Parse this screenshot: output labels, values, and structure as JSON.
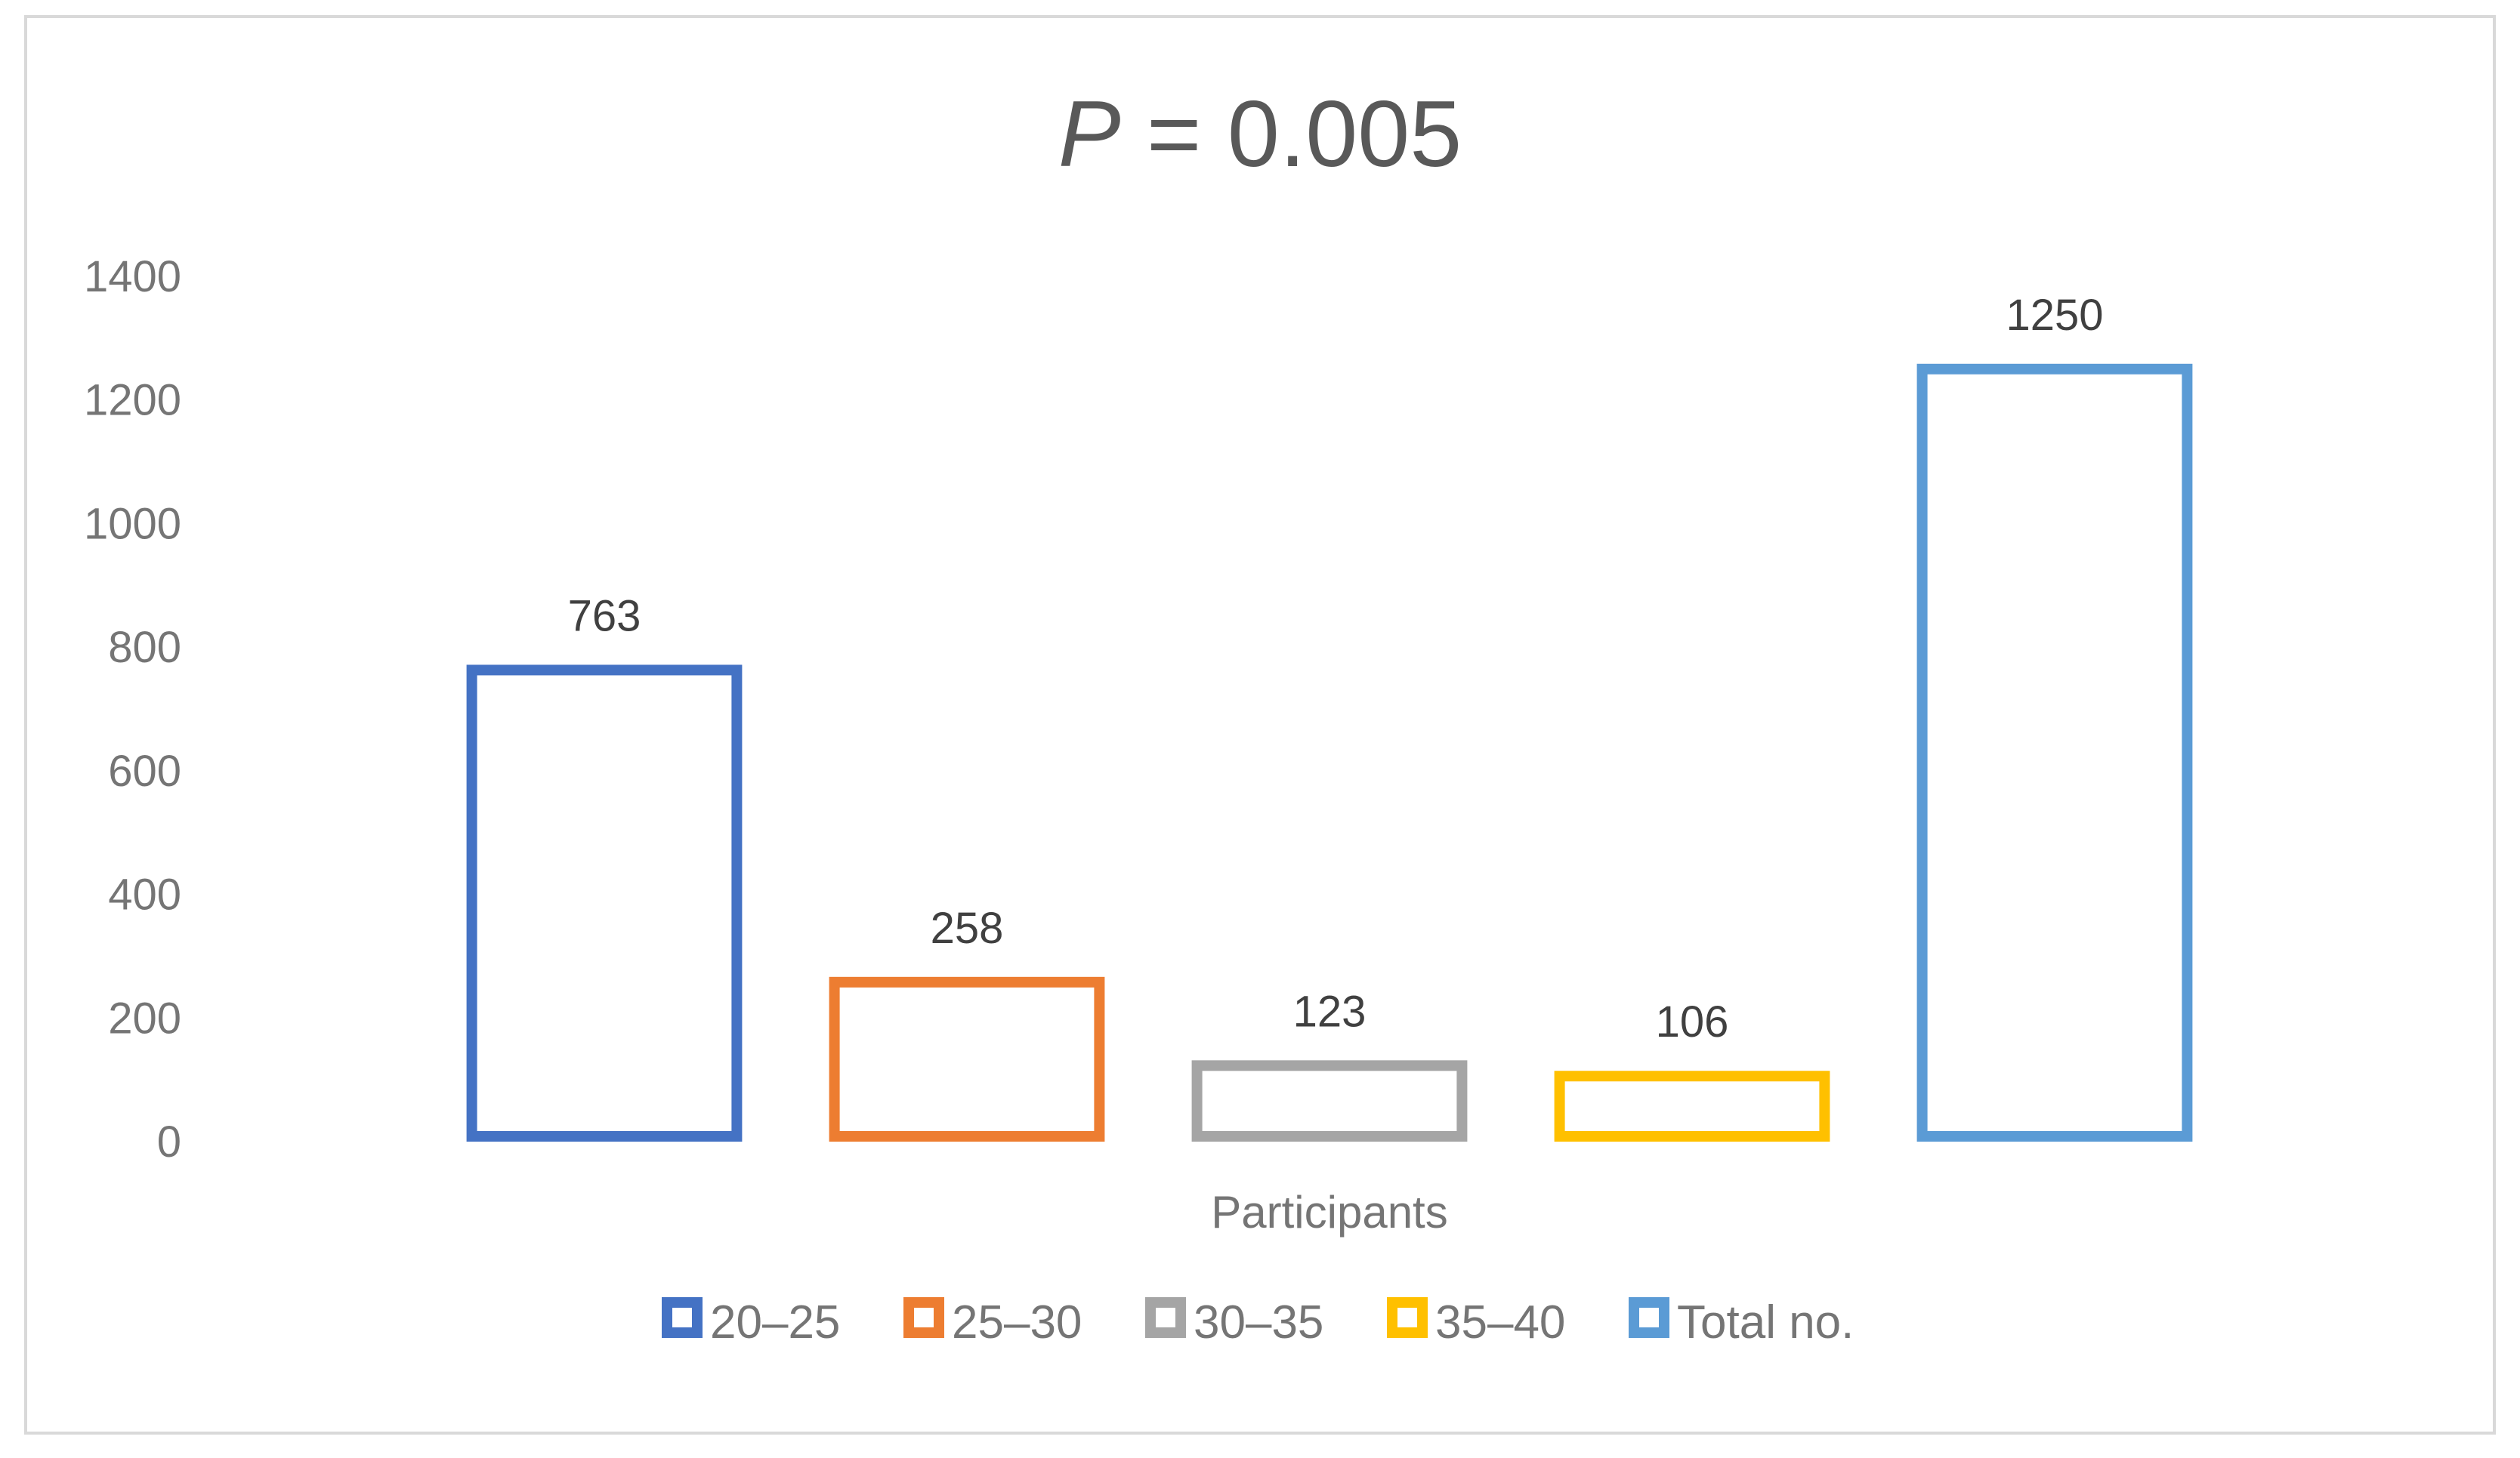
{
  "chart_data": {
    "type": "bar",
    "title": {
      "italic_part": "P",
      "rest": " = 0.005"
    },
    "xlabel": "Participants",
    "ylabel": "",
    "ylim": [
      0,
      1400
    ],
    "y_ticks": [
      "0",
      "200",
      "400",
      "600",
      "800",
      "1000",
      "1200",
      "1400"
    ],
    "grid": false,
    "legend_position": "bottom",
    "bar_style": "outlined",
    "series": [
      {
        "name": "20–25",
        "value": 763,
        "color": "#4472C4"
      },
      {
        "name": "25–30",
        "value": 258,
        "color": "#ED7D31"
      },
      {
        "name": "30–35",
        "value": 123,
        "color": "#A5A5A5"
      },
      {
        "name": "35–40",
        "value": 106,
        "color": "#FFC000"
      },
      {
        "name": "Total no.",
        "value": 1250,
        "color": "#5B9BD5"
      }
    ]
  }
}
